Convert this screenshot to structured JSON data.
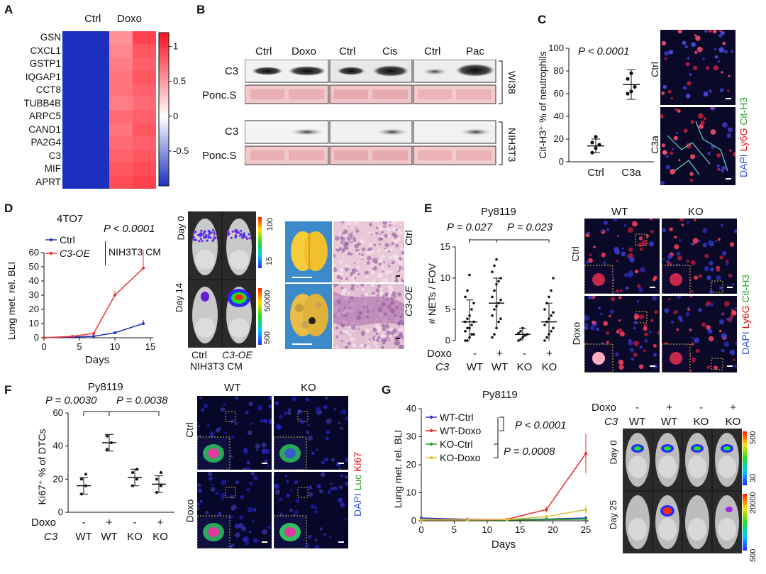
{
  "panel_letters": {
    "a": "A",
    "b": "B",
    "c": "C",
    "d": "D",
    "e": "E",
    "f": "F",
    "g": "G"
  },
  "heatmap": {
    "col_labels": [
      "Ctrl",
      "Doxo"
    ],
    "genes": [
      "GSN",
      "CXCL1",
      "GSTP1",
      "IQGAP1",
      "CCT8",
      "TUBB4B",
      "ARPC5",
      "CAND1",
      "PA2G4",
      "C3",
      "MIF",
      "APRT"
    ],
    "colorbar_ticks": [
      "1",
      "0.5",
      "0",
      "-0.5"
    ],
    "colors": {
      "low": "#1c2fbf",
      "mid": "#ffffff",
      "high": "#ff1020"
    }
  },
  "blot": {
    "headers": [
      "Ctrl",
      "Doxo",
      "Ctrl",
      "Cis",
      "Ctrl",
      "Pac"
    ],
    "row_labels": [
      "C3",
      "Ponc.S",
      "C3",
      "Ponc.S"
    ],
    "cell_lines": [
      "WI38",
      "NIH3T3"
    ]
  },
  "panel_c": {
    "ylabel": "Cit-H3⁺ % of neutrophils",
    "pvalue": "P < 0.0001",
    "categories": [
      "Ctrl",
      "C3a"
    ],
    "yticks": [
      "0",
      "20",
      "40",
      "60",
      "80",
      "100"
    ],
    "img_rows": [
      "Ctrl",
      "C3a"
    ],
    "stain": {
      "dapi": "DAPI",
      "ly6g": "Ly6G",
      "cith3": "Cit-H3"
    }
  },
  "panel_d": {
    "title": "4TO7",
    "pvalue": "P < 0.0001",
    "legend": [
      "Ctrl",
      "C3-OE"
    ],
    "cm_label": "NIH3T3 CM",
    "ylabel": "Lung met. rel. BLI",
    "xlabel": "Days",
    "xticks": [
      "0",
      "5",
      "10",
      "15"
    ],
    "yticks": [
      "0",
      "10",
      "20",
      "30",
      "40",
      "50",
      "60"
    ],
    "day_labels": [
      "Day 0",
      "Day 14"
    ],
    "img_cols": [
      "Ctrl",
      "C3-OE"
    ],
    "img_caption": "NIH3T3 CM",
    "scale1": [
      "100",
      "15"
    ],
    "scale2": [
      "50000",
      "500"
    ],
    "lung_rows": [
      "Ctrl",
      "C3-OE"
    ]
  },
  "panel_e": {
    "title": "Py8119",
    "p1": "P = 0.027",
    "p2": "P = 0.023",
    "ylabel": "# NETs / FOV",
    "yticks": [
      "0",
      "5",
      "10",
      "15"
    ],
    "doxo_row": [
      "-",
      "+",
      "-",
      "+"
    ],
    "geno_row": [
      "WT",
      "WT",
      "KO",
      "KO"
    ],
    "row_heads": [
      "Doxo",
      "C3"
    ],
    "img_cols": [
      "WT",
      "KO"
    ],
    "img_rows": [
      "Ctrl",
      "Doxo"
    ],
    "stain": {
      "dapi": "DAPI",
      "ly6g": "Ly6G",
      "cith3": "Cit-H3"
    }
  },
  "panel_f": {
    "title": "Py8119",
    "p1": "P = 0.0030",
    "p2": "P = 0.0038",
    "ylabel": "Ki67⁺ % of DTCs",
    "yticks": [
      "0",
      "20",
      "40",
      "60"
    ],
    "doxo_row": [
      "-",
      "+",
      "-",
      "+"
    ],
    "geno_row": [
      "WT",
      "WT",
      "KO",
      "KO"
    ],
    "row_heads": [
      "Doxo",
      "C3"
    ],
    "img_cols": [
      "WT",
      "KO"
    ],
    "img_rows": [
      "Ctrl",
      "Doxo"
    ],
    "stain": {
      "dapi": "DAPI",
      "luc": "Luc",
      "ki67": "Ki67"
    }
  },
  "panel_g": {
    "title": "Py8119",
    "legend": [
      "WT-Ctrl",
      "WT-Doxo",
      "KO-Ctrl",
      "KO-Doxo"
    ],
    "p1": "P < 0.0001",
    "p2": "P = 0.0008",
    "ylabel": "Lung met. rel. BLI",
    "xlabel": "Days",
    "xticks": [
      "0",
      "5",
      "10",
      "15",
      "20",
      "25"
    ],
    "yticks": [
      "0",
      "10",
      "20",
      "30",
      "40"
    ],
    "doxo_row": [
      "-",
      "+",
      "-",
      "+"
    ],
    "geno_row": [
      "WT",
      "WT",
      "KO",
      "KO"
    ],
    "row_heads": [
      "Doxo",
      "C3"
    ],
    "day_labels": [
      "Day 0",
      "Day 25"
    ],
    "scale1": [
      "500",
      "30"
    ],
    "scale2": [
      "20000",
      "500"
    ]
  },
  "chart_data": [
    {
      "type": "heatmap",
      "rows": [
        "GSN",
        "CXCL1",
        "GSTP1",
        "IQGAP1",
        "CCT8",
        "TUBB4B",
        "ARPC5",
        "CAND1",
        "PA2G4",
        "C3",
        "MIF",
        "APRT"
      ],
      "columns": [
        "Ctrl",
        "Ctrl",
        "Doxo",
        "Doxo"
      ],
      "values": [
        [
          -1,
          -1,
          0.55,
          0.95
        ],
        [
          -1,
          -1,
          0.6,
          0.85
        ],
        [
          -1,
          -1,
          0.65,
          0.8
        ],
        [
          -1,
          -1,
          0.7,
          0.85
        ],
        [
          -1,
          -1,
          0.7,
          0.8
        ],
        [
          -1,
          -1,
          0.65,
          0.75
        ],
        [
          -1,
          -1,
          0.75,
          0.8
        ],
        [
          -1,
          -1,
          0.7,
          0.85
        ],
        [
          -1,
          -1,
          0.75,
          0.8
        ],
        [
          -1,
          -1,
          0.8,
          0.85
        ],
        [
          -1,
          -1,
          0.85,
          0.9
        ],
        [
          -1,
          -1,
          0.9,
          0.95
        ]
      ],
      "zlim": [
        -1,
        1.2
      ]
    },
    {
      "type": "scatter",
      "panel": "C",
      "categories": [
        "Ctrl",
        "C3a"
      ],
      "series": [
        {
          "name": "Ctrl",
          "values": [
            8,
            12,
            15,
            17,
            22
          ],
          "mean": 14,
          "sd": 6
        },
        {
          "name": "C3a",
          "values": [
            60,
            62,
            66,
            73,
            78
          ],
          "mean": 68,
          "sd": 13
        }
      ],
      "ylim": [
        0,
        100
      ]
    },
    {
      "type": "line",
      "panel": "D",
      "x": [
        0,
        4,
        7,
        10,
        14
      ],
      "series": [
        {
          "name": "Ctrl",
          "values": [
            0,
            0.5,
            1,
            3.5,
            10
          ],
          "err": [
            0,
            0,
            0.5,
            1,
            2.5
          ]
        },
        {
          "name": "C3-OE",
          "values": [
            0,
            1,
            3,
            30,
            49
          ],
          "err": [
            0,
            0,
            0,
            3,
            13
          ]
        }
      ],
      "xlim": [
        0,
        15
      ],
      "ylim": [
        0,
        60
      ]
    },
    {
      "type": "scatter",
      "panel": "E",
      "categories": [
        "WT Ctrl",
        "WT Doxo",
        "KO Ctrl",
        "KO Doxo"
      ],
      "means": [
        3,
        6,
        1,
        3
      ],
      "sd": [
        3.5,
        4,
        1,
        3
      ],
      "ylim": [
        0,
        15
      ]
    },
    {
      "type": "scatter",
      "panel": "F",
      "categories": [
        "WT Ctrl",
        "WT Doxo",
        "KO Ctrl",
        "KO Doxo"
      ],
      "series": [
        {
          "values": [
            11,
            16,
            20,
            23
          ],
          "mean": 16,
          "sd": 5
        },
        {
          "values": [
            38,
            42,
            46
          ],
          "mean": 42,
          "sd": 5
        },
        {
          "values": [
            16,
            20,
            24,
            26
          ],
          "mean": 21,
          "sd": 5
        },
        {
          "values": [
            12,
            16,
            20,
            24
          ],
          "mean": 17,
          "sd": 5
        }
      ],
      "ylim": [
        0,
        60
      ]
    },
    {
      "type": "line",
      "panel": "G",
      "x": [
        0,
        7,
        13,
        19,
        25
      ],
      "series": [
        {
          "name": "WT-Ctrl",
          "values": [
            1,
            0.5,
            0.4,
            0.6,
            1
          ]
        },
        {
          "name": "WT-Doxo",
          "values": [
            0.5,
            0.4,
            0.5,
            4,
            24
          ],
          "err": [
            0,
            0,
            0,
            1,
            7
          ]
        },
        {
          "name": "KO-Ctrl",
          "values": [
            0.4,
            0.3,
            0.3,
            0.4,
            0.5
          ]
        },
        {
          "name": "KO-Doxo",
          "values": [
            0.3,
            0.3,
            0.4,
            1.5,
            4
          ],
          "err": [
            0,
            0,
            0,
            0.5,
            1.5
          ]
        }
      ],
      "xlim": [
        0,
        25
      ],
      "ylim": [
        0,
        40
      ]
    }
  ]
}
